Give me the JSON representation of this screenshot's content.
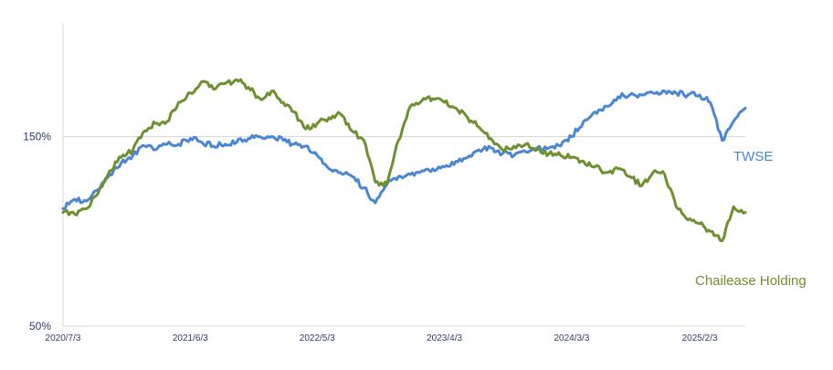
{
  "chart_data": {
    "type": "line",
    "x_ticks": [
      "2020/7/3",
      "2021/6/3",
      "2022/5/3",
      "2023/4/3",
      "2024/3/3",
      "2025/2/3"
    ],
    "y_ticks": [
      "150%",
      "50%"
    ],
    "ylim": [
      50,
      210
    ],
    "grid": "horizontal at 150%",
    "series": [
      {
        "name": "TWSE",
        "color": "#4a86d4",
        "x": [
          "2020/7/3",
          "2020/8/3",
          "2020/9/3",
          "2020/10/3",
          "2020/11/3",
          "2020/12/3",
          "2021/1/3",
          "2021/2/3",
          "2021/3/3",
          "2021/4/3",
          "2021/5/3",
          "2021/6/3",
          "2021/7/3",
          "2021/8/3",
          "2021/9/3",
          "2021/10/3",
          "2021/11/3",
          "2021/12/3",
          "2022/1/3",
          "2022/2/3",
          "2022/3/3",
          "2022/4/3",
          "2022/5/3",
          "2022/6/3",
          "2022/7/3",
          "2022/8/3",
          "2022/9/3",
          "2022/10/3",
          "2022/11/3",
          "2022/12/3",
          "2023/1/3",
          "2023/2/3",
          "2023/3/3",
          "2023/4/3",
          "2023/5/3",
          "2023/6/3",
          "2023/7/3",
          "2023/8/3",
          "2023/9/3",
          "2023/10/3",
          "2023/11/3",
          "2023/12/3",
          "2024/1/3",
          "2024/2/3",
          "2024/3/3",
          "2024/4/3",
          "2024/5/3",
          "2024/6/3",
          "2024/7/3",
          "2024/8/3",
          "2024/9/3",
          "2024/10/3",
          "2024/11/3",
          "2024/12/3",
          "2025/1/3",
          "2025/2/3",
          "2025/3/3",
          "2025/4/3",
          "2025/5/3",
          "2025/6/3"
        ],
        "values": [
          112,
          117,
          116,
          122,
          130,
          136,
          140,
          145,
          143,
          146,
          146,
          149,
          147,
          145,
          146,
          147,
          149,
          150,
          150,
          148,
          146,
          145,
          140,
          133,
          131,
          129,
          123,
          115,
          125,
          129,
          130,
          132,
          133,
          134,
          137,
          139,
          143,
          144,
          141,
          140,
          142,
          144,
          144,
          145,
          150,
          158,
          163,
          166,
          171,
          172,
          172,
          173,
          174,
          173,
          172,
          172,
          168,
          148,
          158,
          165
        ]
      },
      {
        "name": "Chailease Holding",
        "color": "#6f8f31",
        "x": [
          "2020/7/3",
          "2020/8/3",
          "2020/9/3",
          "2020/10/3",
          "2020/11/3",
          "2020/12/3",
          "2021/1/3",
          "2021/2/3",
          "2021/3/3",
          "2021/4/3",
          "2021/5/3",
          "2021/6/3",
          "2021/7/3",
          "2021/8/3",
          "2021/9/3",
          "2021/10/3",
          "2021/11/3",
          "2021/12/3",
          "2022/1/3",
          "2022/2/3",
          "2022/3/3",
          "2022/4/3",
          "2022/5/3",
          "2022/6/3",
          "2022/7/3",
          "2022/8/3",
          "2022/9/3",
          "2022/10/3",
          "2022/11/3",
          "2022/12/3",
          "2023/1/3",
          "2023/2/3",
          "2023/3/3",
          "2023/4/3",
          "2023/5/3",
          "2023/6/3",
          "2023/7/3",
          "2023/8/3",
          "2023/9/3",
          "2023/10/3",
          "2023/11/3",
          "2023/12/3",
          "2024/1/3",
          "2024/2/3",
          "2024/3/3",
          "2024/4/3",
          "2024/5/3",
          "2024/6/3",
          "2024/7/3",
          "2024/8/3",
          "2024/9/3",
          "2024/10/3",
          "2024/11/3",
          "2024/12/3",
          "2025/1/3",
          "2025/2/3",
          "2025/3/3",
          "2025/4/3",
          "2025/5/3",
          "2025/6/3"
        ],
        "values": [
          110,
          109,
          112,
          120,
          132,
          139,
          143,
          153,
          157,
          158,
          168,
          173,
          179,
          175,
          178,
          180,
          176,
          170,
          174,
          168,
          163,
          154,
          157,
          160,
          162,
          153,
          148,
          126,
          125,
          148,
          166,
          169,
          170,
          168,
          165,
          160,
          155,
          149,
          143,
          145,
          146,
          143,
          141,
          140,
          139,
          137,
          134,
          131,
          133,
          129,
          124,
          131,
          130,
          113,
          106,
          104,
          100,
          95,
          113,
          110
        ]
      }
    ]
  }
}
